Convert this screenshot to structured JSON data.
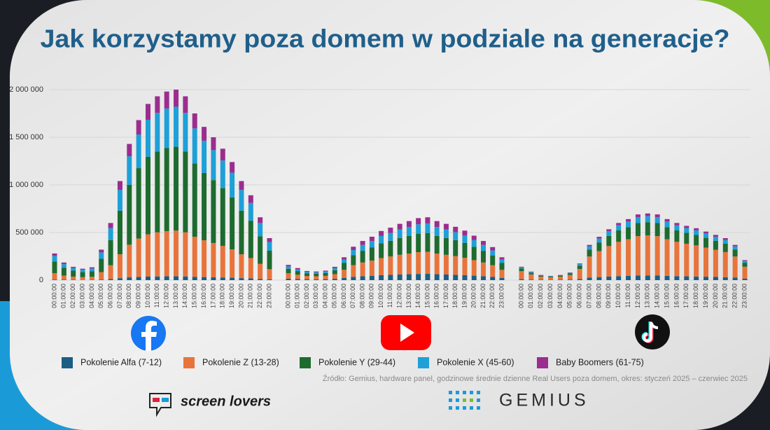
{
  "chart_data": {
    "type": "bar",
    "stacked": true,
    "grid": true,
    "title": "Jak korzystamy poza domem w podziale na generacje?",
    "source": "Źródło: Gemius, hardware panel, godzinowe średnie dzienne Real Users poza domem, okres: styczeń 2025 – czerwiec 2025",
    "ylim": [
      0,
      2000000
    ],
    "yticks": [
      0,
      {
        "value": 500000,
        "label": "500 000"
      },
      {
        "value": 1000000,
        "label": "1 000 000"
      },
      {
        "value": 1500000,
        "label": "1 500 000"
      },
      {
        "value": 2000000,
        "label": "2 000 000"
      }
    ],
    "categories": [
      "00:00:00",
      "01:00:00",
      "02:00:00",
      "03:00:00",
      "04:00:00",
      "05:00:00",
      "06:00:00",
      "07:00:00",
      "08:00:00",
      "09:00:00",
      "10:00:00",
      "11:00:00",
      "12:00:00",
      "13:00:00",
      "14:00:00",
      "15:00:00",
      "16:00:00",
      "17:00:00",
      "18:00:00",
      "19:00:00",
      "20:00:00",
      "21:00:00",
      "22:00:00",
      "23:00:00",
      "00:00:00",
      "01:00:00",
      "02:00:00",
      "03:00:00",
      "04:00:00",
      "05:00:00",
      "06:00:00",
      "07:00:00",
      "08:00:00",
      "09:00:00",
      "10:00:00",
      "11:00:00",
      "12:00:00",
      "13:00:00",
      "14:00:00",
      "15:00:00",
      "16:00:00",
      "17:00:00",
      "18:00:00",
      "19:00:00",
      "20:00:00",
      "21:00:00",
      "22:00:00",
      "23:00:00",
      "00:00:00",
      "01:00:00",
      "02:00:00",
      "03:00:00",
      "04:00:00",
      "05:00:00",
      "06:00:00",
      "07:00:00",
      "08:00:00",
      "09:00:00",
      "10:00:00",
      "11:00:00",
      "12:00:00",
      "13:00:00",
      "14:00:00",
      "15:00:00",
      "16:00:00",
      "17:00:00",
      "18:00:00",
      "19:00:00",
      "20:00:00",
      "21:00:00",
      "22:00:00",
      "23:00:00"
    ],
    "series": [
      {
        "name": "Pokolenie Alfa (7-12)",
        "color": "#1b5e85",
        "values": [
          6000,
          4000,
          3000,
          2000,
          3000,
          6000,
          12000,
          21000,
          29000,
          34000,
          37000,
          39000,
          40000,
          40000,
          39000,
          35000,
          32000,
          30000,
          28000,
          25000,
          21000,
          18000,
          13000,
          9000,
          16000,
          13000,
          10000,
          9000,
          10000,
          14000,
          24000,
          35000,
          41000,
          46000,
          52000,
          55000,
          59000,
          62000,
          65000,
          66000,
          62000,
          59000,
          56000,
          52000,
          47000,
          41000,
          35000,
          24000,
          10000,
          6000,
          4000,
          3000,
          4000,
          6000,
          12000,
          26000,
          32000,
          37000,
          42000,
          45000,
          48000,
          49000,
          48000,
          45000,
          42000,
          40000,
          38000,
          36000,
          33000,
          31000,
          26000,
          15000
        ]
      },
      {
        "name": "Pokolenie Z (13-28)",
        "color": "#e8743b",
        "values": [
          67000,
          44000,
          34000,
          29000,
          32000,
          77000,
          144000,
          250000,
          343000,
          403000,
          444000,
          463000,
          475000,
          480000,
          463000,
          420000,
          386000,
          360000,
          331000,
          298000,
          250000,
          214000,
          158000,
          106000,
          56000,
          44000,
          33000,
          32000,
          35000,
          49000,
          84000,
          123000,
          144000,
          159000,
          180000,
          193000,
          207000,
          217000,
          228000,
          231000,
          217000,
          207000,
          196000,
          182000,
          163000,
          144000,
          121000,
          84000,
          84000,
          54000,
          33000,
          27000,
          33000,
          48000,
          105000,
          222000,
          273000,
          321000,
          360000,
          384000,
          414000,
          420000,
          414000,
          384000,
          360000,
          342000,
          327000,
          306000,
          285000,
          264000,
          222000,
          126000
        ]
      },
      {
        "name": "Pokolenie Y (29-44)",
        "color": "#1e6b2f",
        "values": [
          123000,
          81000,
          62000,
          53000,
          59000,
          141000,
          264000,
          458000,
          629000,
          739000,
          814000,
          849000,
          871000,
          880000,
          849000,
          770000,
          708000,
          660000,
          607000,
          546000,
          458000,
          392000,
          290000,
          194000,
          48000,
          38000,
          29000,
          27000,
          30000,
          42000,
          72000,
          105000,
          123000,
          137000,
          155000,
          165000,
          177000,
          186000,
          195000,
          198000,
          186000,
          177000,
          168000,
          156000,
          140000,
          123000,
          104000,
          72000,
          28000,
          18000,
          11000,
          9000,
          11000,
          16000,
          35000,
          74000,
          91000,
          107000,
          120000,
          128000,
          138000,
          140000,
          138000,
          128000,
          120000,
          114000,
          109000,
          102000,
          95000,
          88000,
          74000,
          42000
        ]
      },
      {
        "name": "Pokolenie X (45-60)",
        "color": "#1ea0d8",
        "values": [
          59000,
          39000,
          29000,
          25000,
          28000,
          67000,
          126000,
          218000,
          300000,
          353000,
          389000,
          405000,
          416000,
          420000,
          405000,
          368000,
          338000,
          315000,
          290000,
          260000,
          218000,
          187000,
          139000,
          92000,
          24000,
          19000,
          14000,
          14000,
          15000,
          21000,
          36000,
          53000,
          62000,
          68000,
          77000,
          83000,
          89000,
          93000,
          98000,
          99000,
          93000,
          89000,
          84000,
          78000,
          70000,
          62000,
          52000,
          36000,
          13000,
          8000,
          5000,
          4000,
          5000,
          7000,
          16000,
          33000,
          41000,
          48000,
          54000,
          58000,
          62000,
          63000,
          62000,
          58000,
          54000,
          51000,
          49000,
          46000,
          43000,
          40000,
          33000,
          19000
        ]
      },
      {
        "name": "Baby Boomers (61-75)",
        "color": "#9b2d8f",
        "values": [
          25000,
          17000,
          12000,
          11000,
          13000,
          29000,
          54000,
          93000,
          129000,
          151000,
          166000,
          174000,
          178000,
          180000,
          174000,
          157000,
          145000,
          135000,
          124000,
          111000,
          93000,
          80000,
          60000,
          40000,
          16000,
          13000,
          10000,
          9000,
          10000,
          14000,
          24000,
          35000,
          41000,
          46000,
          52000,
          55000,
          59000,
          62000,
          65000,
          66000,
          62000,
          59000,
          56000,
          52000,
          47000,
          41000,
          35000,
          24000,
          6000,
          4000,
          2000,
          2000,
          2000,
          3000,
          7000,
          15000,
          18000,
          21000,
          24000,
          26000,
          28000,
          28000,
          28000,
          26000,
          24000,
          23000,
          22000,
          20000,
          19000,
          18000,
          15000,
          8000
        ]
      }
    ]
  },
  "footer": {
    "logos": [
      "screen lovers",
      "GEMIUS"
    ]
  }
}
